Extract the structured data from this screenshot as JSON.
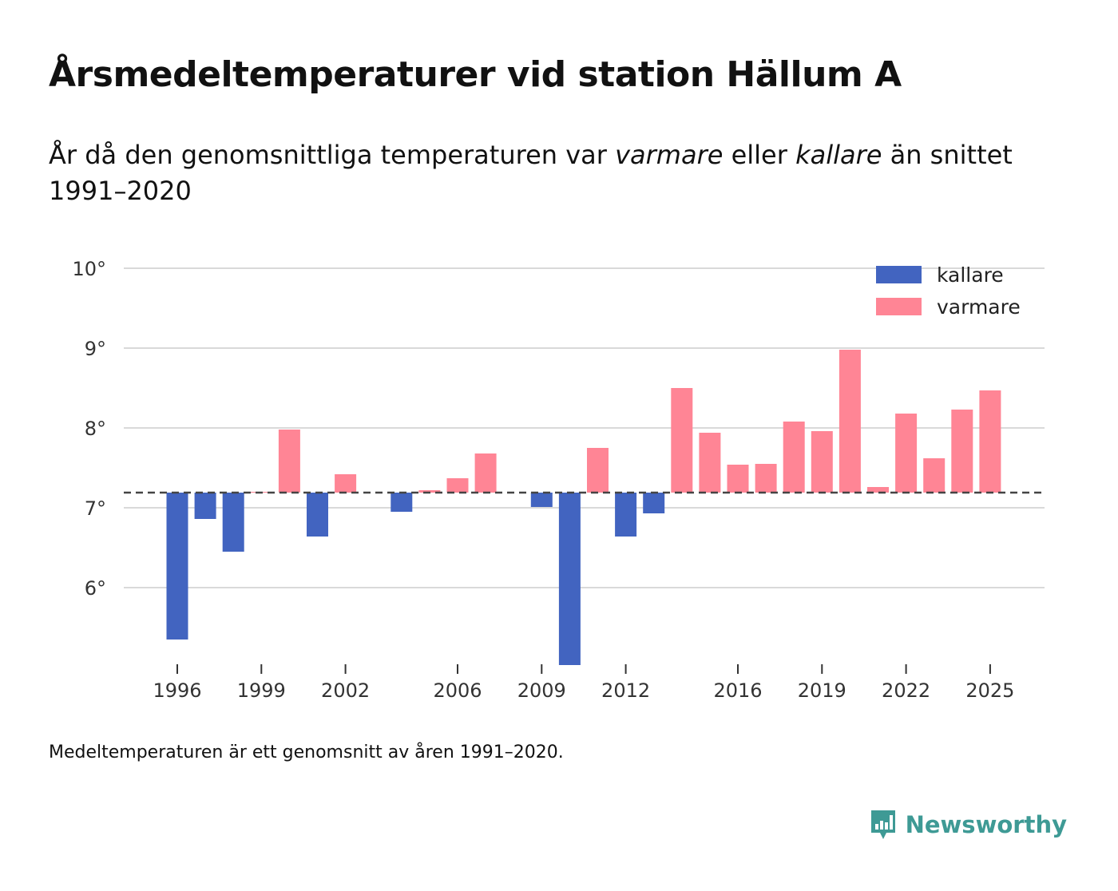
{
  "title": "Årsmedeltemperaturer vid station Hällum A",
  "subtitle": {
    "part1": "År då den genomsnittliga temperaturen var ",
    "warmer": "varmare",
    "part2": " eller ",
    "colder": "kallare",
    "part3": " än snittet 1991–2020"
  },
  "footnote": "Medeltemperaturen är ett genomsnitt av åren 1991–2020.",
  "brand": "Newsworthy",
  "colors": {
    "colder": "#4264c0",
    "warmer": "#ff8595",
    "grid": "#d9d9d9",
    "baseline": "#444444",
    "brand": "#3e9a95"
  },
  "chart_data": {
    "type": "bar",
    "title": "Årsmedeltemperaturer vid station Hällum A",
    "baseline": 7.19,
    "baseline_style": "dashed",
    "ylim": [
      5,
      10
    ],
    "y_ticks": [
      6,
      7,
      8,
      9,
      10
    ],
    "y_tick_labels": [
      "6°",
      "7°",
      "8°",
      "9°",
      "10°"
    ],
    "x_ticks": [
      1996,
      1999,
      2002,
      2006,
      2009,
      2012,
      2016,
      2019,
      2022,
      2025
    ],
    "x_tick_labels": [
      "1996",
      "1999",
      "2002",
      "2006",
      "2009",
      "2012",
      "2016",
      "2019",
      "2022",
      "2025"
    ],
    "grid": true,
    "legend_position": "top-right",
    "legend": [
      {
        "key": "colder",
        "label": "kallare"
      },
      {
        "key": "warmer",
        "label": "varmare"
      }
    ],
    "years": [
      1996,
      1997,
      1998,
      1999,
      2000,
      2001,
      2002,
      2003,
      2004,
      2005,
      2006,
      2007,
      2008,
      2009,
      2010,
      2011,
      2012,
      2013,
      2014,
      2015,
      2016,
      2017,
      2018,
      2019,
      2020,
      2021,
      2022,
      2023,
      2024,
      2025
    ],
    "values": [
      5.35,
      6.86,
      6.45,
      7.2,
      7.98,
      6.64,
      7.42,
      null,
      6.95,
      7.22,
      7.37,
      7.68,
      null,
      7.01,
      5.03,
      7.75,
      6.64,
      6.93,
      8.5,
      7.94,
      7.54,
      7.55,
      8.08,
      7.96,
      8.98,
      7.26,
      8.18,
      7.62,
      8.23,
      8.47
    ]
  }
}
